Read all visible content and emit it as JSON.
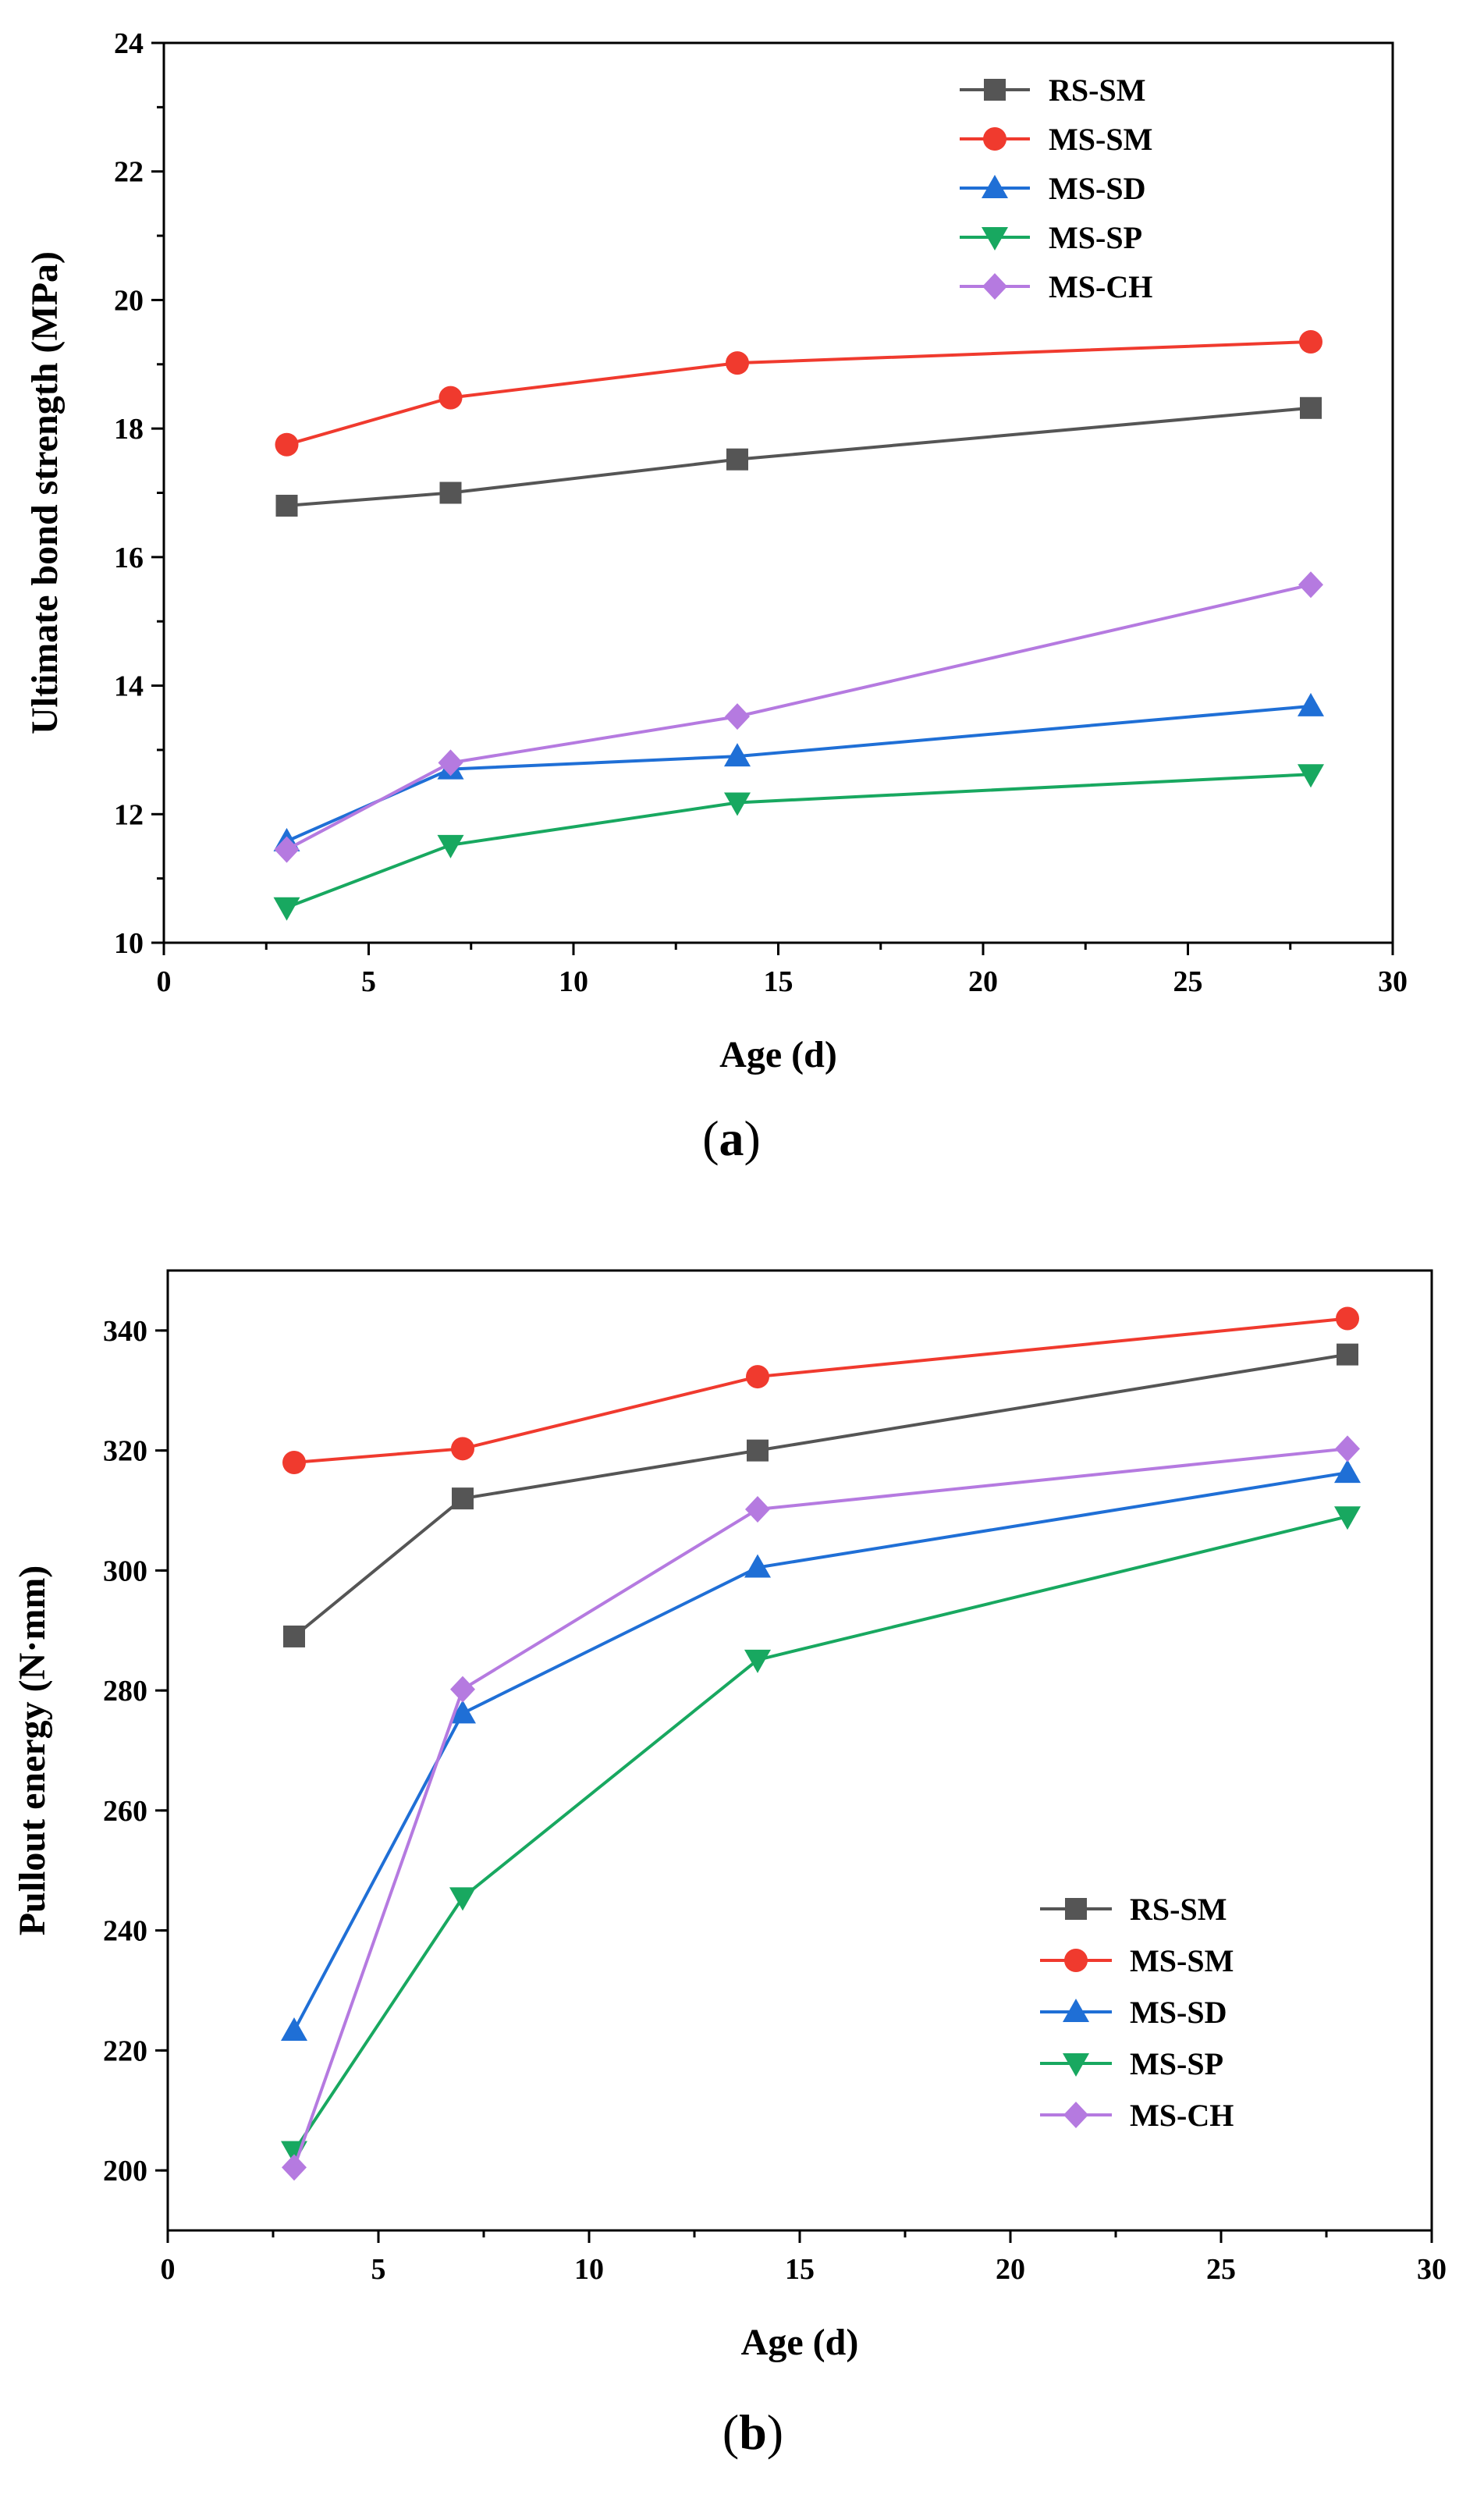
{
  "chart_data": [
    {
      "type": "line",
      "panel_label": "a",
      "xlabel": "Age (d)",
      "ylabel": "Ultimate bond strength (MPa)",
      "xlim": [
        0,
        30
      ],
      "ylim": [
        10,
        24
      ],
      "xticks": [
        0,
        5,
        10,
        15,
        20,
        25,
        30
      ],
      "yticks": [
        10,
        12,
        14,
        16,
        18,
        20,
        22,
        24
      ],
      "grid": false,
      "legend_position": "top-right",
      "x": [
        3,
        7,
        14,
        28
      ],
      "series": [
        {
          "name": "RS-SM",
          "color": "#555555",
          "marker": "square",
          "values": [
            16.8,
            17.0,
            17.52,
            18.32
          ]
        },
        {
          "name": "MS-SM",
          "color": "#f03a2e",
          "marker": "circle",
          "values": [
            17.75,
            18.48,
            19.02,
            19.35
          ]
        },
        {
          "name": "MS-SD",
          "color": "#1f6fd6",
          "marker": "triangle-up",
          "values": [
            11.58,
            12.7,
            12.9,
            13.68
          ]
        },
        {
          "name": "MS-SP",
          "color": "#18a860",
          "marker": "triangle-down",
          "values": [
            10.55,
            11.52,
            12.18,
            12.62
          ]
        },
        {
          "name": "MS-CH",
          "color": "#b57ae0",
          "marker": "diamond",
          "values": [
            11.45,
            12.8,
            13.52,
            15.57
          ]
        }
      ]
    },
    {
      "type": "line",
      "panel_label": "b",
      "xlabel": "Age (d)",
      "ylabel": "Pullout energy (N·mm)",
      "xlim": [
        0,
        30
      ],
      "ylim": [
        190,
        350
      ],
      "xticks": [
        0,
        5,
        10,
        15,
        20,
        25,
        30
      ],
      "yticks": [
        200,
        220,
        240,
        260,
        280,
        300,
        320,
        340
      ],
      "grid": false,
      "legend_position": "bottom-right",
      "x": [
        3,
        7,
        14,
        28
      ],
      "series": [
        {
          "name": "RS-SM",
          "color": "#555555",
          "marker": "square",
          "values": [
            289,
            312,
            320,
            336
          ]
        },
        {
          "name": "MS-SM",
          "color": "#f03a2e",
          "marker": "circle",
          "values": [
            318,
            320.3,
            332.3,
            342
          ]
        },
        {
          "name": "MS-SD",
          "color": "#1f6fd6",
          "marker": "triangle-up",
          "values": [
            223.3,
            276.2,
            300.5,
            316.3
          ]
        },
        {
          "name": "MS-SP",
          "color": "#18a860",
          "marker": "triangle-down",
          "values": [
            203.2,
            245.5,
            285.1,
            309
          ]
        },
        {
          "name": "MS-CH",
          "color": "#b57ae0",
          "marker": "diamond",
          "values": [
            200.5,
            280.2,
            310.2,
            320.3
          ]
        }
      ]
    }
  ]
}
